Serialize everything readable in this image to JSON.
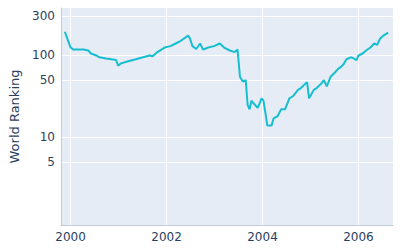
{
  "chart_data": {
    "type": "line",
    "y_label": "World Ranking",
    "color": "#17becf",
    "log": "y",
    "grid": true,
    "x": [
      1999.88,
      2000.0,
      2000.06,
      2000.27,
      2000.37,
      2000.43,
      2000.54,
      2000.6,
      2000.74,
      2000.85,
      2000.95,
      2000.99,
      2001.05,
      2001.2,
      2001.36,
      2001.51,
      2001.65,
      2001.71,
      2001.81,
      2001.96,
      2002.08,
      2002.19,
      2002.29,
      2002.39,
      2002.45,
      2002.49,
      2002.54,
      2002.62,
      2002.7,
      2002.76,
      2002.87,
      2002.99,
      2003.11,
      2003.2,
      2003.32,
      2003.42,
      2003.48,
      2003.53,
      2003.59,
      2003.65,
      2003.69,
      2003.73,
      2003.77,
      2003.84,
      2003.9,
      2003.94,
      2003.98,
      2004.02,
      2004.06,
      2004.1,
      2004.19,
      2004.23,
      2004.31,
      2004.39,
      2004.47,
      2004.56,
      2004.64,
      2004.74,
      2004.8,
      2004.89,
      2004.93,
      2004.97,
      2005.01,
      2005.07,
      2005.13,
      2005.22,
      2005.28,
      2005.34,
      2005.42,
      2005.51,
      2005.57,
      2005.63,
      2005.69,
      2005.75,
      2005.84,
      2005.9,
      2005.96,
      2006.0,
      2006.08,
      2006.16,
      2006.25,
      2006.33,
      2006.39,
      2006.45,
      2006.52,
      2006.62
    ],
    "values": [
      195,
      125,
      118,
      118,
      115,
      105,
      100,
      95,
      92,
      90,
      88,
      75,
      80,
      85,
      90,
      95,
      100,
      98,
      110,
      125,
      130,
      140,
      150,
      165,
      175,
      160,
      130,
      120,
      140,
      118,
      125,
      130,
      140,
      125,
      115,
      110,
      118,
      55,
      48,
      50,
      25,
      22,
      28,
      25,
      23,
      26,
      30,
      28,
      20,
      14,
      14,
      17,
      18,
      22,
      22,
      30,
      32,
      38,
      40,
      45,
      47,
      30,
      33,
      38,
      40,
      45,
      50,
      42,
      55,
      62,
      68,
      72,
      78,
      90,
      95,
      92,
      88,
      100,
      105,
      115,
      125,
      140,
      135,
      160,
      175,
      190
    ],
    "xlim": [
      1999.8,
      2006.72
    ],
    "xticks": [
      2000,
      2002,
      2004,
      2006
    ],
    "ylim": [
      0.85,
      380
    ],
    "yticks": [
      5,
      10,
      50,
      100,
      300
    ]
  }
}
